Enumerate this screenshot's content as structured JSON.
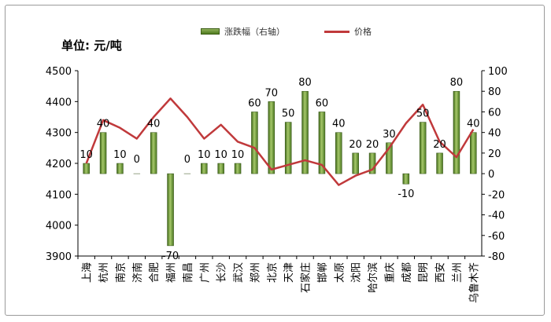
{
  "chart_data": {
    "type": "bar+line",
    "unit_label": "单位: 元/吨",
    "categories": [
      "上海",
      "杭州",
      "南京",
      "济南",
      "合肥",
      "福州",
      "南昌",
      "广州",
      "长沙",
      "武汉",
      "郑州",
      "北京",
      "天津",
      "石家庄",
      "邯郸",
      "太原",
      "沈阳",
      "哈尔滨",
      "重庆",
      "成都",
      "昆明",
      "西安",
      "兰州",
      "乌鲁木齐"
    ],
    "series": [
      {
        "name": "涨跌幅（右轴）",
        "type": "bar",
        "axis": "right",
        "color": "#6b9a2e",
        "values": [
          10,
          40,
          10,
          0,
          40,
          -70,
          0,
          10,
          10,
          10,
          60,
          70,
          50,
          80,
          60,
          40,
          20,
          20,
          30,
          -10,
          50,
          20,
          80,
          40
        ],
        "labels": [
          "10",
          "40",
          "10",
          "0",
          "40",
          "-70",
          "0",
          "10",
          "10",
          "10",
          "60",
          "70",
          "50",
          "80",
          "60",
          "40",
          "20",
          "20",
          "30",
          "-10",
          "50",
          "20",
          "80",
          "40"
        ]
      },
      {
        "name": "价格",
        "type": "line",
        "axis": "left",
        "color": "#c0393b",
        "values": [
          4200,
          4340,
          4315,
          4280,
          4350,
          4410,
          4350,
          4280,
          4325,
          4270,
          4250,
          4180,
          4195,
          4210,
          4195,
          4130,
          4160,
          4180,
          4250,
          4330,
          4390,
          4270,
          4220,
          4310
        ]
      }
    ],
    "y_left": {
      "min": 3900,
      "max": 4500,
      "ticks": [
        "3900",
        "4000",
        "4100",
        "4200",
        "4300",
        "4400",
        "4500"
      ]
    },
    "y_right": {
      "min": -80,
      "max": 100,
      "ticks": [
        "-80",
        "-60",
        "-40",
        "-20",
        "0",
        "20",
        "40",
        "60",
        "80",
        "100"
      ]
    },
    "grid": false,
    "legend_position": "top"
  }
}
